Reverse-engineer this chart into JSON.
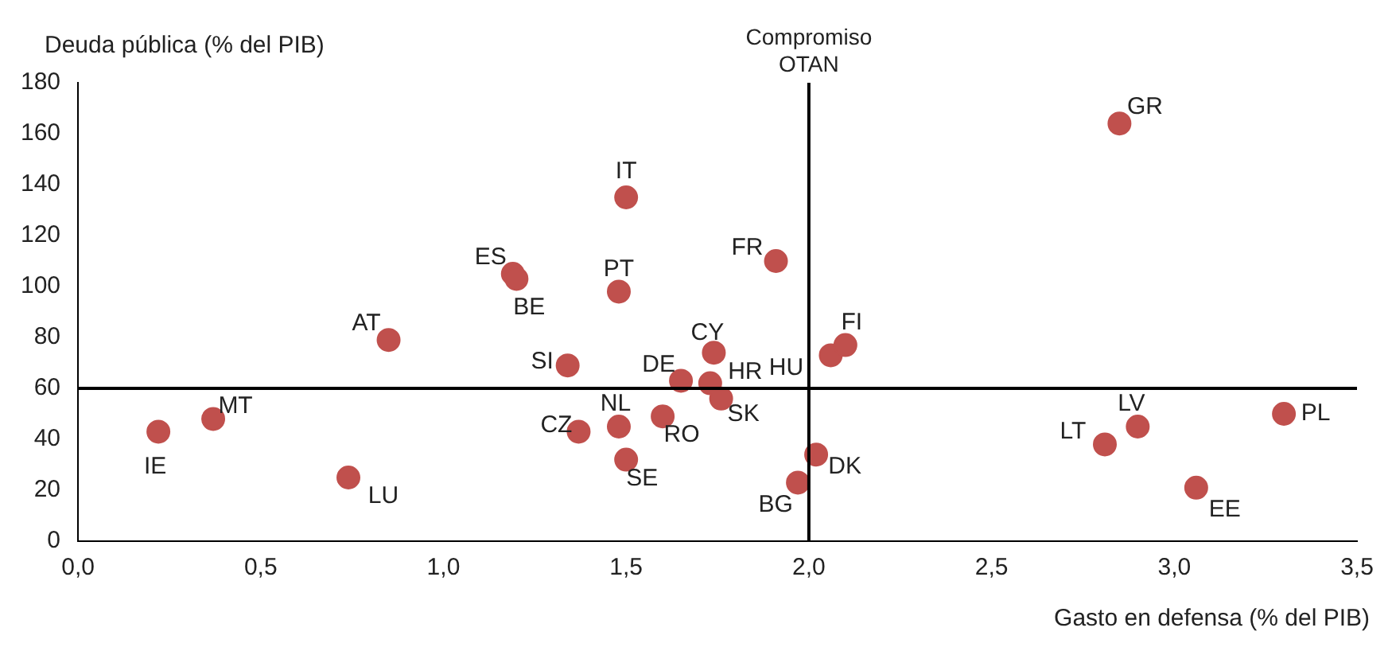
{
  "chart_data": {
    "type": "scatter",
    "xlabel": "Gasto en defensa (% del PIB)",
    "ylabel": "Deuda pública (% del PIB)",
    "x": [
      0.22,
      0.37,
      0.74,
      0.85,
      1.19,
      1.2,
      1.34,
      1.37,
      1.5,
      1.48,
      1.48,
      1.5,
      1.6,
      1.65,
      1.74,
      1.73,
      1.76,
      1.91,
      1.97,
      2.02,
      2.06,
      2.1,
      2.85,
      2.81,
      2.9,
      3.06,
      3.3
    ],
    "series": [
      {
        "color": "#c0504d",
        "values": [
          43,
          48,
          25,
          79,
          105,
          103,
          69,
          43,
          135,
          98,
          45,
          32,
          49,
          63,
          74,
          62,
          56,
          110,
          23,
          34,
          73,
          77,
          164,
          38,
          45,
          21,
          50
        ]
      }
    ],
    "annotations": [
      {
        "text": "IE",
        "x": 0.22,
        "y": 43
      },
      {
        "text": "MT",
        "x": 0.37,
        "y": 48
      },
      {
        "text": "LU",
        "x": 0.74,
        "y": 25
      },
      {
        "text": "AT",
        "x": 0.85,
        "y": 79
      },
      {
        "text": "ES",
        "x": 1.19,
        "y": 105
      },
      {
        "text": "BE",
        "x": 1.2,
        "y": 103
      },
      {
        "text": "SI",
        "x": 1.34,
        "y": 69
      },
      {
        "text": "CZ",
        "x": 1.37,
        "y": 43
      },
      {
        "text": "IT",
        "x": 1.5,
        "y": 135
      },
      {
        "text": "PT",
        "x": 1.48,
        "y": 98
      },
      {
        "text": "NL",
        "x": 1.48,
        "y": 45
      },
      {
        "text": "SE",
        "x": 1.5,
        "y": 32
      },
      {
        "text": "RO",
        "x": 1.6,
        "y": 49
      },
      {
        "text": "DE",
        "x": 1.65,
        "y": 63
      },
      {
        "text": "CY",
        "x": 1.74,
        "y": 74
      },
      {
        "text": "HR",
        "x": 1.73,
        "y": 62
      },
      {
        "text": "SK",
        "x": 1.76,
        "y": 56
      },
      {
        "text": "FR",
        "x": 1.91,
        "y": 110
      },
      {
        "text": "BG",
        "x": 1.97,
        "y": 23
      },
      {
        "text": "DK",
        "x": 2.02,
        "y": 34
      },
      {
        "text": "HU",
        "x": 2.06,
        "y": 73
      },
      {
        "text": "FI",
        "x": 2.1,
        "y": 77
      },
      {
        "text": "GR",
        "x": 2.85,
        "y": 164
      },
      {
        "text": "LT",
        "x": 2.81,
        "y": 38
      },
      {
        "text": "LV",
        "x": 2.9,
        "y": 45
      },
      {
        "text": "EE",
        "x": 3.06,
        "y": 21
      },
      {
        "text": "PL",
        "x": 3.3,
        "y": 50
      }
    ],
    "ref_lines": [
      {
        "axis": "x",
        "value": 2.0,
        "label": "Compromiso OTAN",
        "color": "#000000"
      },
      {
        "axis": "y",
        "value": 60,
        "color": "#000000"
      }
    ],
    "xlim": [
      0,
      3.5
    ],
    "xticks": [
      {
        "value": 0,
        "label": "0,0"
      },
      {
        "value": 0.5,
        "label": "0,5"
      },
      {
        "value": 1,
        "label": "1,0"
      },
      {
        "value": 1.5,
        "label": "1,5"
      },
      {
        "value": 2,
        "label": "2,0"
      },
      {
        "value": 2.5,
        "label": "2,5"
      },
      {
        "value": 3,
        "label": "3,0"
      },
      {
        "value": 3.5,
        "label": "3,5"
      }
    ],
    "ylim": [
      0,
      180
    ],
    "yticks": [
      0,
      20,
      40,
      60,
      80,
      100,
      120,
      140,
      160,
      180
    ],
    "grid": false,
    "legend": false,
    "marker": "circle"
  }
}
